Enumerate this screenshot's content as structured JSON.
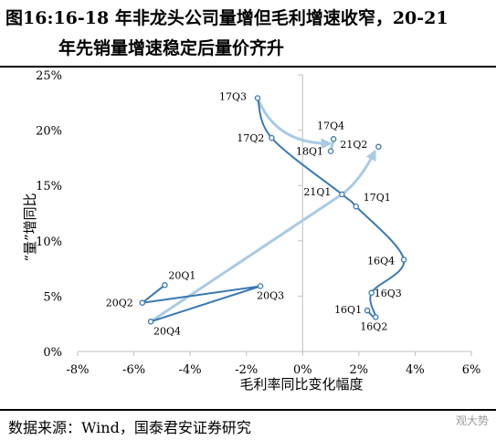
{
  "title": {
    "line1": "图16:16-18 年非龙头公司量增但毛利增速收窄，20-21",
    "line2": "年先销量增速稳定后量价齐升"
  },
  "source": "数据来源：Wind，国泰君安证券研究",
  "watermark": "观大势",
  "chart_data": {
    "type": "scatter",
    "xlabel": "毛利率同比变化幅度",
    "ylabel": "“量”增同比",
    "xlim": [
      -8,
      6
    ],
    "ylim": [
      0,
      25
    ],
    "x_ticks": [
      "-8%",
      "-6%",
      "-4%",
      "-2%",
      "0%",
      "2%",
      "4%",
      "6%"
    ],
    "y_ticks": [
      "0%",
      "5%",
      "10%",
      "15%",
      "20%",
      "25%"
    ],
    "colors": {
      "line": "#3a78b4",
      "arrow": "#a8cbe6",
      "axis": "#bfbfbf"
    },
    "points": [
      {
        "label": "16Q1",
        "x": 2.3,
        "y": 3.7
      },
      {
        "label": "16Q2",
        "x": 2.6,
        "y": 3.1
      },
      {
        "label": "16Q3",
        "x": 2.45,
        "y": 5.3
      },
      {
        "label": "16Q4",
        "x": 3.6,
        "y": 8.3
      },
      {
        "label": "17Q1",
        "x": 1.9,
        "y": 13.1
      },
      {
        "label": "17Q2",
        "x": -1.1,
        "y": 19.3
      },
      {
        "label": "17Q3",
        "x": -1.6,
        "y": 22.9
      },
      {
        "label": "17Q4",
        "x": 1.1,
        "y": 19.2
      },
      {
        "label": "18Q1",
        "x": 1.0,
        "y": 18.1
      },
      {
        "label": "21Q1",
        "x": 1.4,
        "y": 14.2
      },
      {
        "label": "21Q2",
        "x": 2.7,
        "y": 18.5
      },
      {
        "label": "20Q1",
        "x": -4.9,
        "y": 6.0
      },
      {
        "label": "20Q2",
        "x": -5.7,
        "y": 4.4
      },
      {
        "label": "20Q3",
        "x": -1.5,
        "y": 5.9
      },
      {
        "label": "20Q4",
        "x": -5.4,
        "y": 2.7
      }
    ]
  }
}
